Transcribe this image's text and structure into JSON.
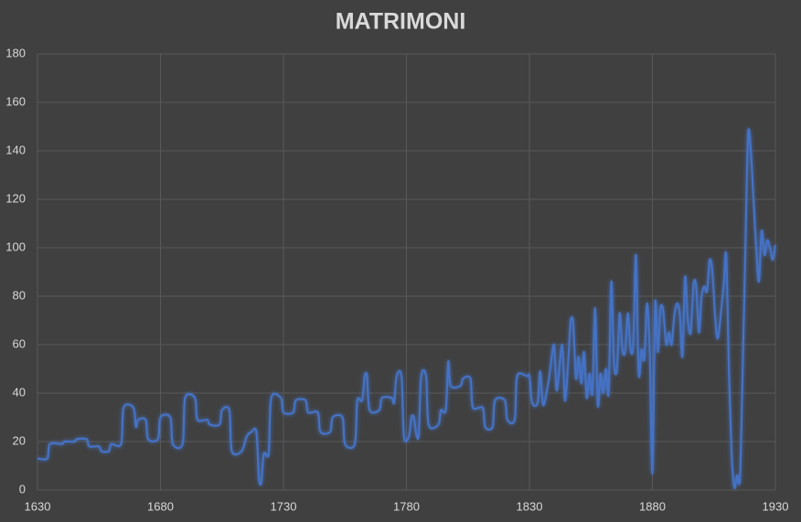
{
  "chart_data": {
    "type": "line",
    "title": "MATRIMONI",
    "x": [
      1630,
      1634,
      1635,
      1640,
      1641,
      1645,
      1646,
      1650,
      1651,
      1655,
      1656,
      1659,
      1660,
      1664,
      1665,
      1669,
      1670,
      1671,
      1674,
      1675,
      1679,
      1680,
      1684,
      1685,
      1689,
      1690,
      1694,
      1695,
      1699,
      1700,
      1704,
      1705,
      1708,
      1709,
      1713,
      1715,
      1717,
      1719,
      1720,
      1721,
      1722,
      1724,
      1725,
      1729,
      1730,
      1734,
      1735,
      1739,
      1740,
      1744,
      1745,
      1749,
      1750,
      1754,
      1755,
      1759,
      1760,
      1762,
      1763,
      1764,
      1765,
      1769,
      1770,
      1774,
      1775,
      1776,
      1778,
      1779,
      1781,
      1782,
      1783,
      1784,
      1785,
      1786,
      1788,
      1789,
      1793,
      1794,
      1796,
      1797,
      1798,
      1802,
      1803,
      1806,
      1807,
      1811,
      1812,
      1815,
      1816,
      1820,
      1821,
      1824,
      1825,
      1829,
      1830,
      1831.1,
      1833.3,
      1834.4,
      1835.6,
      1837.8,
      1840,
      1841.1,
      1843.3,
      1844.4,
      1845.6,
      1846.7,
      1847.8,
      1848.9,
      1850,
      1851.1,
      1852.2,
      1853.3,
      1854.4,
      1855.6,
      1856.7,
      1857.8,
      1858.9,
      1860,
      1861.1,
      1862.2,
      1863.3,
      1864.4,
      1865.6,
      1866.7,
      1867.8,
      1868.9,
      1870,
      1871.1,
      1872.2,
      1873.3,
      1874.4,
      1875.6,
      1876.7,
      1877.8,
      1878.9,
      1880,
      1881.1,
      1882.2,
      1883.3,
      1884.4,
      1885.6,
      1886.7,
      1887.8,
      1888.9,
      1890,
      1891.1,
      1892.2,
      1893.3,
      1894.4,
      1895.6,
      1896.7,
      1897.8,
      1898.9,
      1900,
      1901.1,
      1902.2,
      1903.3,
      1904.4,
      1905.6,
      1906.7,
      1908.9,
      1910,
      1911.1,
      1912.2,
      1913.3,
      1914.4,
      1915.6,
      1916.7,
      1917.8,
      1918.9,
      1920,
      1921.1,
      1922.2,
      1923.3,
      1924.4,
      1925.6,
      1926.7,
      1927.8,
      1928.9,
      1930
    ],
    "series": [
      {
        "name": "MATRIMONI",
        "color": "#4472c4",
        "values": [
          13,
          13,
          19,
          19,
          20,
          20,
          21,
          21,
          18,
          18,
          16,
          16,
          19,
          19,
          34,
          34,
          26,
          29,
          29,
          21,
          21,
          30,
          30,
          19,
          19,
          38,
          38,
          29,
          29,
          27,
          27,
          33,
          33,
          16,
          16,
          22,
          24,
          24,
          5,
          3,
          15,
          15,
          38,
          38,
          32,
          32,
          37,
          37,
          32,
          32,
          24,
          24,
          30,
          30,
          19,
          19,
          37,
          37,
          47,
          47,
          33,
          33,
          38,
          38,
          36,
          47,
          47,
          22,
          22,
          30,
          30,
          23,
          23,
          47,
          47,
          27,
          27,
          33,
          33,
          53,
          43,
          43,
          46,
          46,
          34,
          34,
          26,
          26,
          37,
          37,
          29,
          29,
          47,
          47,
          47,
          36,
          36,
          49,
          35,
          45,
          60,
          41,
          60,
          37,
          50,
          69,
          69,
          46,
          55,
          44,
          57,
          38,
          48,
          40,
          75,
          35,
          48,
          40,
          50,
          40,
          86,
          52,
          50,
          73,
          58,
          57,
          73,
          58,
          60,
          97,
          48,
          58,
          54,
          77,
          58,
          7,
          77,
          57,
          75,
          74,
          60,
          65,
          60,
          72,
          77,
          73,
          55,
          88,
          70,
          65,
          85,
          84,
          65,
          80,
          84,
          82,
          95,
          90,
          70,
          63,
          84,
          97,
          50,
          15,
          1,
          6,
          5,
          50,
          100,
          147,
          140,
          120,
          100,
          86,
          107,
          97,
          103,
          100,
          95,
          101
        ]
      }
    ],
    "xlim": [
      1630,
      1930
    ],
    "xticks": [
      1630,
      1680,
      1730,
      1780,
      1830,
      1880,
      1930
    ],
    "ylim": [
      0,
      180
    ],
    "yticks": [
      0,
      20,
      40,
      60,
      80,
      100,
      120,
      140,
      160,
      180
    ],
    "grid": true
  }
}
